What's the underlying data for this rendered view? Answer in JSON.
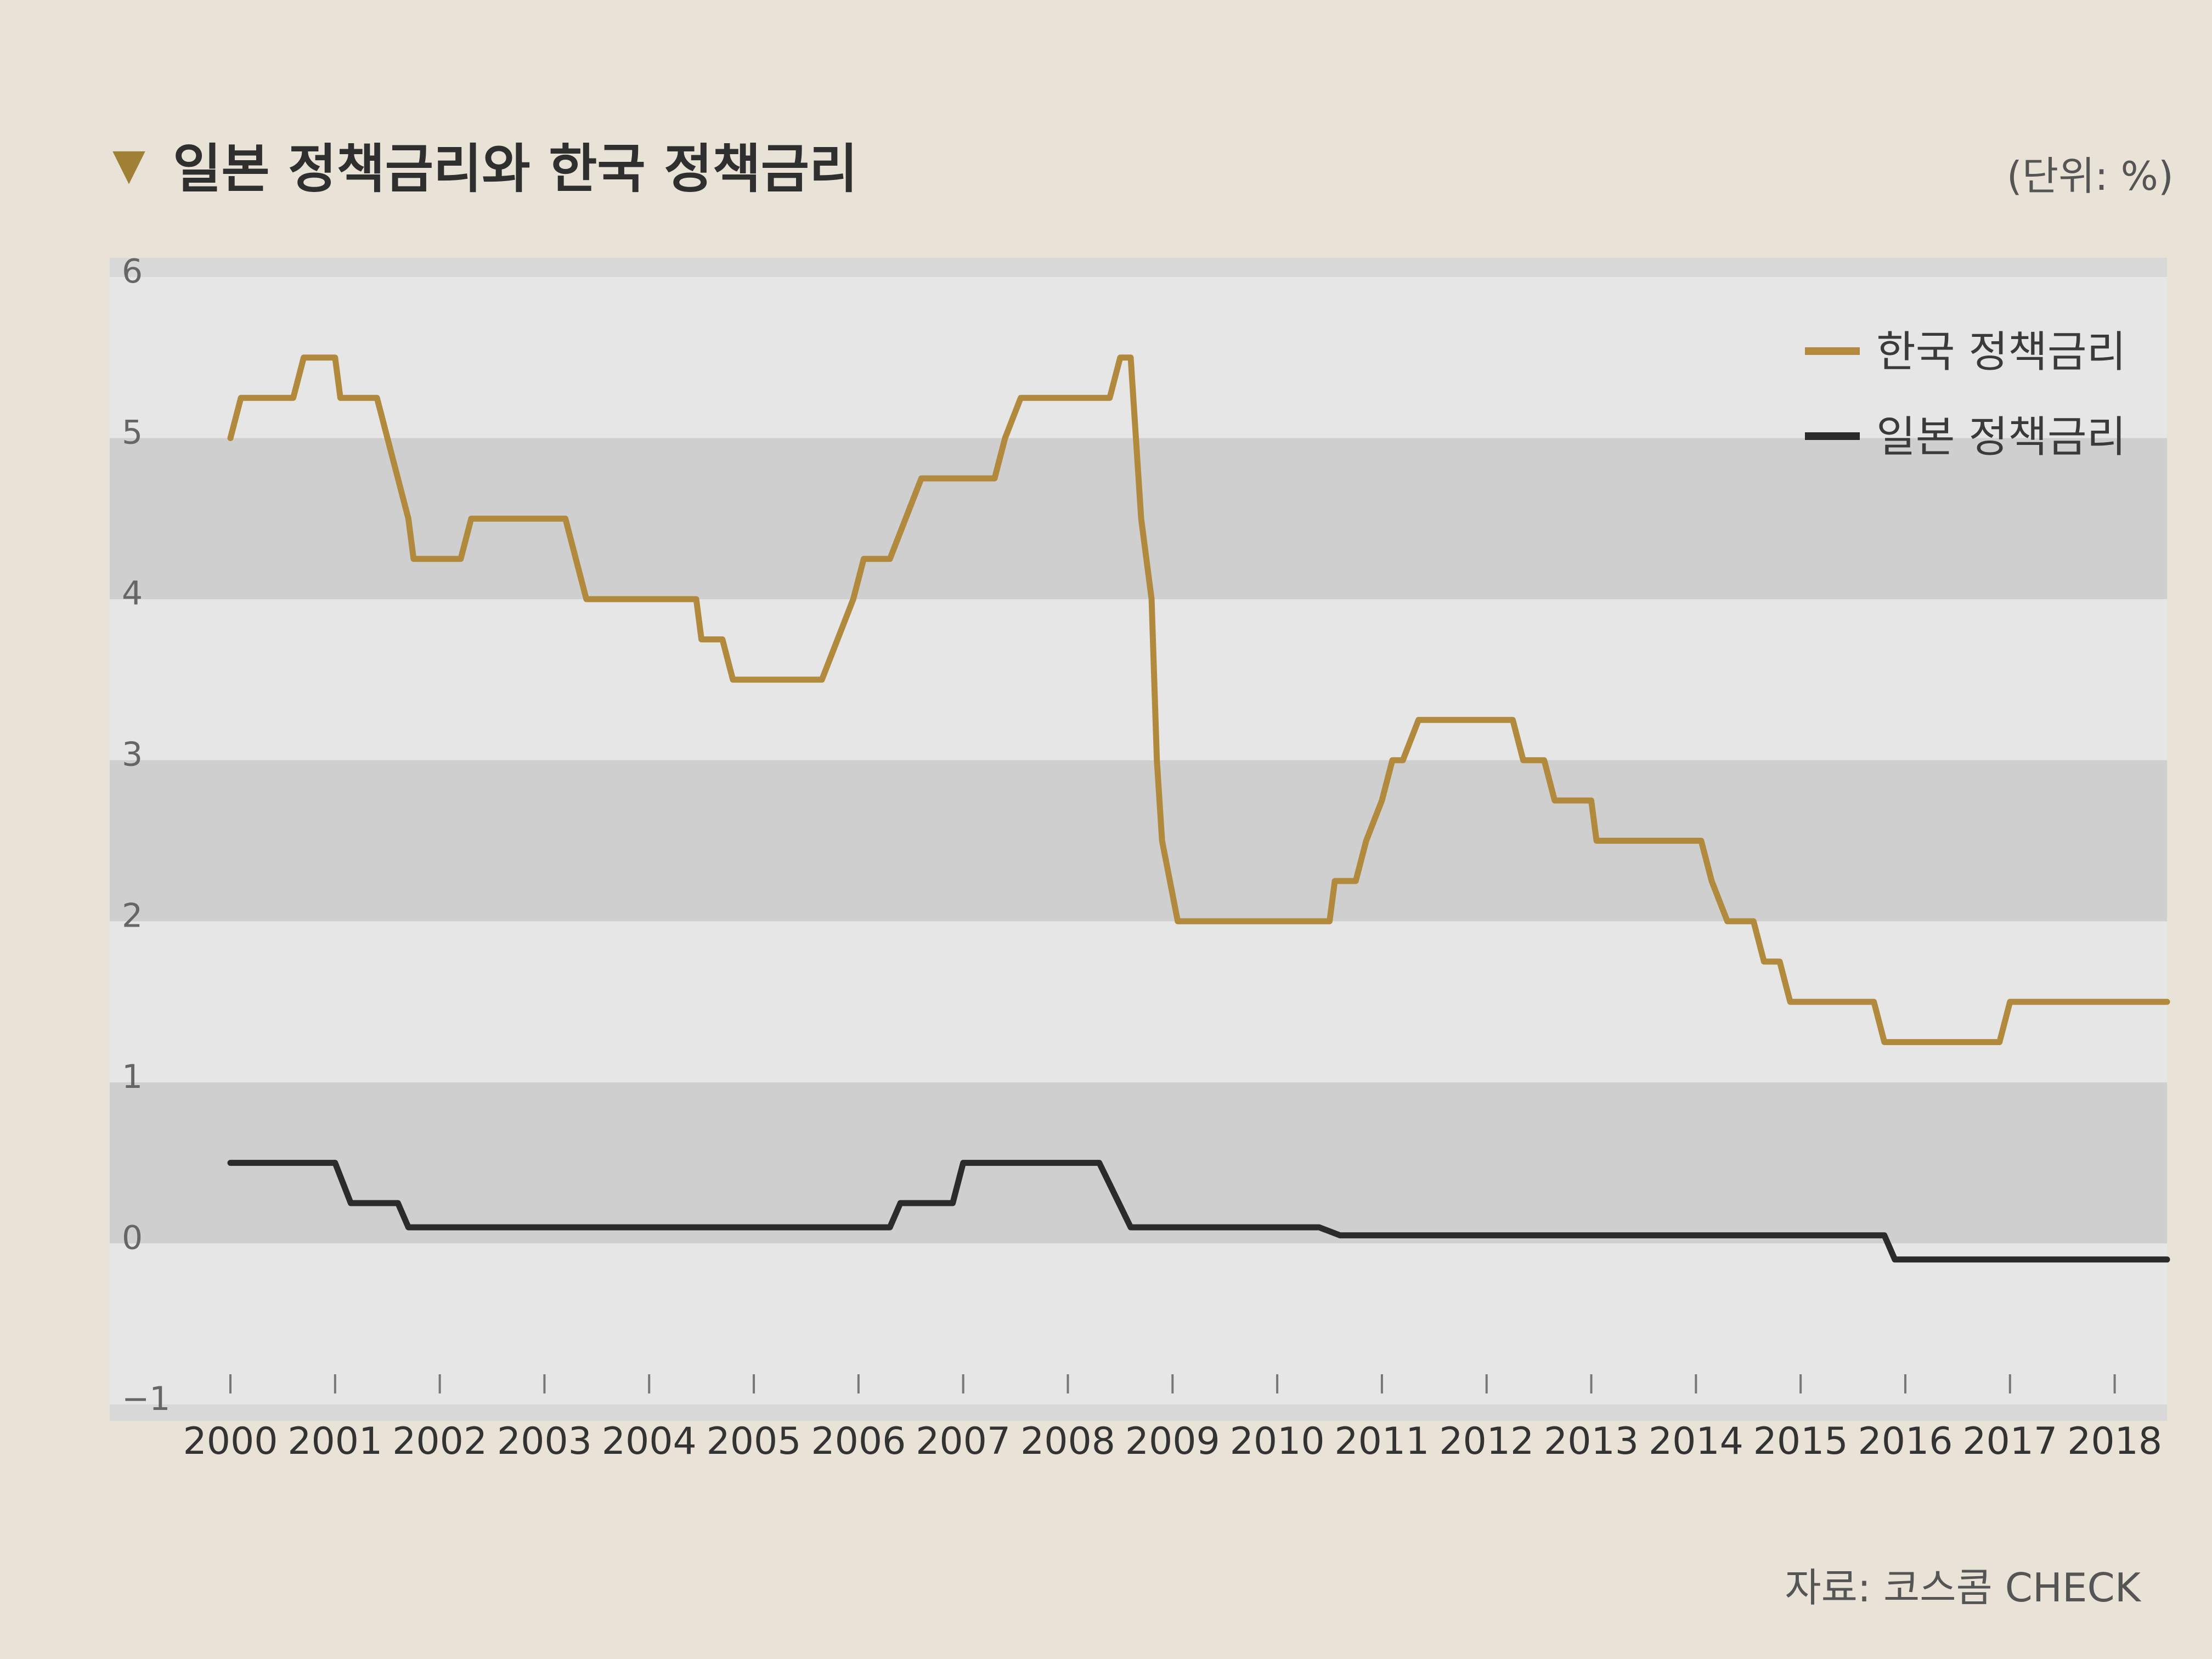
{
  "chart_data": {
    "type": "line",
    "title": "일본 정책금리와 한국 정책금리",
    "unit": "(단위: %)",
    "source": "자료: 코스콤 CHECK",
    "xlabel": "",
    "ylabel": "",
    "x_ticks": [
      "2000",
      "2001",
      "2002",
      "2003",
      "2004",
      "2005",
      "2006",
      "2007",
      "2008",
      "2009",
      "2010",
      "2011",
      "2012",
      "2013",
      "2014",
      "2015",
      "2016",
      "2017",
      "2018"
    ],
    "y_ticks": [
      "6",
      "5",
      "4",
      "3",
      "2",
      "1",
      "0",
      "−1"
    ],
    "xlim": [
      2000,
      2018.5
    ],
    "ylim": [
      -1,
      6
    ],
    "grid": "alternating horizontal bands",
    "legend_position": "top-right",
    "series": [
      {
        "name": "한국 정책금리",
        "color": "#b28a3e",
        "points": [
          [
            2000.0,
            5.0
          ],
          [
            2000.1,
            5.25
          ],
          [
            2000.6,
            5.25
          ],
          [
            2000.7,
            5.5
          ],
          [
            2001.0,
            5.5
          ],
          [
            2001.05,
            5.25
          ],
          [
            2001.4,
            5.25
          ],
          [
            2001.5,
            5.0
          ],
          [
            2001.6,
            4.75
          ],
          [
            2001.7,
            4.5
          ],
          [
            2001.75,
            4.25
          ],
          [
            2002.2,
            4.25
          ],
          [
            2002.3,
            4.5
          ],
          [
            2002.9,
            4.5
          ],
          [
            2003.2,
            4.5
          ],
          [
            2003.3,
            4.25
          ],
          [
            2003.4,
            4.0
          ],
          [
            2004.1,
            4.0
          ],
          [
            2004.45,
            4.0
          ],
          [
            2004.5,
            3.75
          ],
          [
            2004.7,
            3.75
          ],
          [
            2004.8,
            3.5
          ],
          [
            2005.65,
            3.5
          ],
          [
            2005.8,
            3.75
          ],
          [
            2005.95,
            4.0
          ],
          [
            2006.05,
            4.25
          ],
          [
            2006.3,
            4.25
          ],
          [
            2006.45,
            4.5
          ],
          [
            2006.6,
            4.75
          ],
          [
            2007.3,
            4.75
          ],
          [
            2007.4,
            5.0
          ],
          [
            2007.55,
            5.25
          ],
          [
            2008.4,
            5.25
          ],
          [
            2008.5,
            5.5
          ],
          [
            2008.6,
            5.5
          ],
          [
            2008.7,
            4.5
          ],
          [
            2008.75,
            4.25
          ],
          [
            2008.8,
            4.0
          ],
          [
            2008.85,
            3.0
          ],
          [
            2008.9,
            2.5
          ],
          [
            2009.05,
            2.0
          ],
          [
            2010.5,
            2.0
          ],
          [
            2010.55,
            2.25
          ],
          [
            2010.75,
            2.25
          ],
          [
            2010.85,
            2.5
          ],
          [
            2011.0,
            2.75
          ],
          [
            2011.1,
            3.0
          ],
          [
            2011.2,
            3.0
          ],
          [
            2011.35,
            3.25
          ],
          [
            2012.25,
            3.25
          ],
          [
            2012.35,
            3.0
          ],
          [
            2012.55,
            3.0
          ],
          [
            2012.65,
            2.75
          ],
          [
            2013.0,
            2.75
          ],
          [
            2013.05,
            2.5
          ],
          [
            2014.05,
            2.5
          ],
          [
            2014.15,
            2.25
          ],
          [
            2014.3,
            2.0
          ],
          [
            2014.55,
            2.0
          ],
          [
            2014.65,
            1.75
          ],
          [
            2014.8,
            1.75
          ],
          [
            2014.9,
            1.5
          ],
          [
            2015.7,
            1.5
          ],
          [
            2015.8,
            1.25
          ],
          [
            2016.9,
            1.25
          ],
          [
            2017.0,
            1.5
          ],
          [
            2018.5,
            1.5
          ]
        ]
      },
      {
        "name": "일본 정책금리",
        "color": "#2b2b2b",
        "points": [
          [
            2000.0,
            0.5
          ],
          [
            2001.0,
            0.5
          ],
          [
            2001.15,
            0.25
          ],
          [
            2001.6,
            0.25
          ],
          [
            2001.7,
            0.1
          ],
          [
            2006.3,
            0.1
          ],
          [
            2006.4,
            0.25
          ],
          [
            2006.9,
            0.25
          ],
          [
            2007.0,
            0.5
          ],
          [
            2008.3,
            0.5
          ],
          [
            2008.6,
            0.1
          ],
          [
            2010.4,
            0.1
          ],
          [
            2010.6,
            0.05
          ],
          [
            2015.8,
            0.05
          ],
          [
            2015.9,
            -0.1
          ],
          [
            2018.5,
            -0.1
          ]
        ]
      }
    ]
  }
}
